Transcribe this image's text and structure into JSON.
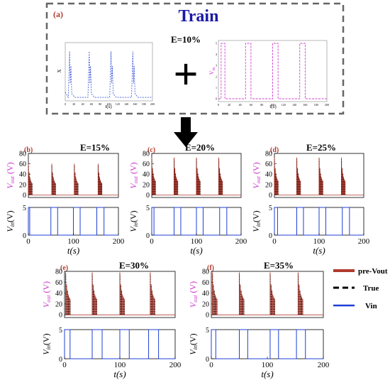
{
  "colors": {
    "accent_blue": "#1a1aa6",
    "pre_vout": "#b03a2e",
    "true": "#000000",
    "vin": "#1f3fd6",
    "vout_label": "#cc33cc",
    "train_x": "#3a55d6",
    "train_vin": "#d040d0",
    "frame": "#666666"
  },
  "train_panel": {
    "tag": "(a)",
    "title": "Train",
    "e_label": "E=10%",
    "plus_symbol": "+",
    "left_ylabel": "X",
    "right_ylabel": "V",
    "right_ylabel_sub": "in",
    "left_xlabel": "t(s)",
    "right_xlabel": "t(s)"
  },
  "legend": {
    "items": [
      {
        "label": "pre-Vout"
      },
      {
        "label": "True"
      },
      {
        "label": "Vin"
      }
    ]
  },
  "axis_text": {
    "vout_main": "V",
    "vout_sub": "out",
    "vout_unit": " (V)",
    "vin_main": "V",
    "vin_sub": "in",
    "vin_unit": "(V)",
    "t_label": "t(s)"
  },
  "chart_data": [
    {
      "type": "line",
      "panel": "(a) left",
      "ylabel": "X",
      "xlabel": "t(s)",
      "x_ticks": [
        0,
        20,
        40,
        60,
        80,
        100,
        120,
        140,
        160,
        180,
        200
      ],
      "xlim": [
        0,
        200
      ],
      "series": [
        {
          "type": "spikes",
          "baseline": 0.5,
          "spike_times": [
            10,
            55,
            105,
            155
          ],
          "spike_peak": 8.5
        }
      ]
    },
    {
      "type": "line",
      "panel": "(a) right",
      "ylabel": "Vin",
      "xlabel": "t(s)",
      "x_ticks": [
        0,
        20,
        40,
        60,
        80,
        100,
        120,
        140,
        160,
        180,
        200
      ],
      "y_ticks": [
        0,
        1,
        2,
        3,
        4,
        5
      ],
      "xlim": [
        0,
        200
      ],
      "ylim": [
        0,
        5
      ],
      "series": [
        {
          "type": "pulse",
          "intervals": [
            [
              5,
              12
            ],
            [
              50,
              60
            ],
            [
              100,
              110
            ],
            [
              150,
              160
            ]
          ],
          "high": 5
        }
      ]
    },
    {
      "type": "line",
      "panel": "(b)",
      "title": "E=15%",
      "top_yticks": [
        0,
        20,
        40,
        60,
        80
      ],
      "bottom_yticks": [
        0,
        5
      ],
      "x_ticks": [
        0,
        100,
        200
      ],
      "xlim": [
        0,
        200
      ],
      "vout_ylim": [
        -5,
        80
      ],
      "vin_ylim": [
        0,
        5
      ],
      "spike_times": [
        0,
        52,
        102,
        155
      ],
      "spike_peak": 60,
      "vin_intervals": [
        [
          0,
          3
        ],
        [
          50,
          65
        ],
        [
          100,
          115
        ],
        [
          152,
          168
        ]
      ]
    },
    {
      "type": "line",
      "panel": "(c)",
      "title": "E=20%",
      "top_yticks": [
        0,
        20,
        40,
        60,
        80
      ],
      "bottom_yticks": [
        0,
        5
      ],
      "x_ticks": [
        0,
        100,
        200
      ],
      "xlim": [
        0,
        200
      ],
      "vout_ylim": [
        -5,
        80
      ],
      "vin_ylim": [
        0,
        5
      ],
      "spike_times": [
        0,
        50,
        100,
        150
      ],
      "spike_peak": 72,
      "vin_intervals": [
        [
          0,
          5
        ],
        [
          50,
          65
        ],
        [
          100,
          115
        ],
        [
          152,
          168
        ]
      ]
    },
    {
      "type": "line",
      "panel": "(d)",
      "title": "E=25%",
      "top_yticks": [
        0,
        20,
        40,
        60,
        80
      ],
      "bottom_yticks": [
        0,
        5
      ],
      "x_ticks": [
        0,
        100,
        200
      ],
      "xlim": [
        0,
        200
      ],
      "vout_ylim": [
        -5,
        80
      ],
      "vin_ylim": [
        0,
        5
      ],
      "spike_times": [
        0,
        50,
        100,
        150
      ],
      "spike_peak": 72,
      "vin_intervals": [
        [
          0,
          7
        ],
        [
          50,
          65
        ],
        [
          100,
          115
        ],
        [
          152,
          168
        ]
      ]
    },
    {
      "type": "line",
      "panel": "(e)",
      "title": "E=30%",
      "top_yticks": [
        0,
        20,
        40,
        60,
        80
      ],
      "bottom_yticks": [
        0,
        5
      ],
      "x_ticks": [
        0,
        100,
        200
      ],
      "xlim": [
        0,
        200
      ],
      "vout_ylim": [
        -5,
        80
      ],
      "vin_ylim": [
        0,
        5
      ],
      "spike_times": [
        2,
        50,
        100,
        155
      ],
      "spike_peak": 78,
      "vin_intervals": [
        [
          0,
          10
        ],
        [
          50,
          68
        ],
        [
          100,
          117
        ],
        [
          152,
          170
        ]
      ]
    },
    {
      "type": "line",
      "panel": "(f)",
      "title": "E=35%",
      "top_yticks": [
        0,
        20,
        40,
        60,
        80
      ],
      "bottom_yticks": [
        0,
        5
      ],
      "x_ticks": [
        0,
        100,
        200
      ],
      "xlim": [
        0,
        200
      ],
      "vout_ylim": [
        -5,
        80
      ],
      "vin_ylim": [
        0,
        5
      ],
      "spike_times": [
        2,
        50,
        105,
        155
      ],
      "spike_peak": 78,
      "vin_intervals": [
        [
          0,
          8
        ],
        [
          50,
          65
        ],
        [
          105,
          120
        ],
        [
          152,
          168
        ]
      ]
    }
  ]
}
